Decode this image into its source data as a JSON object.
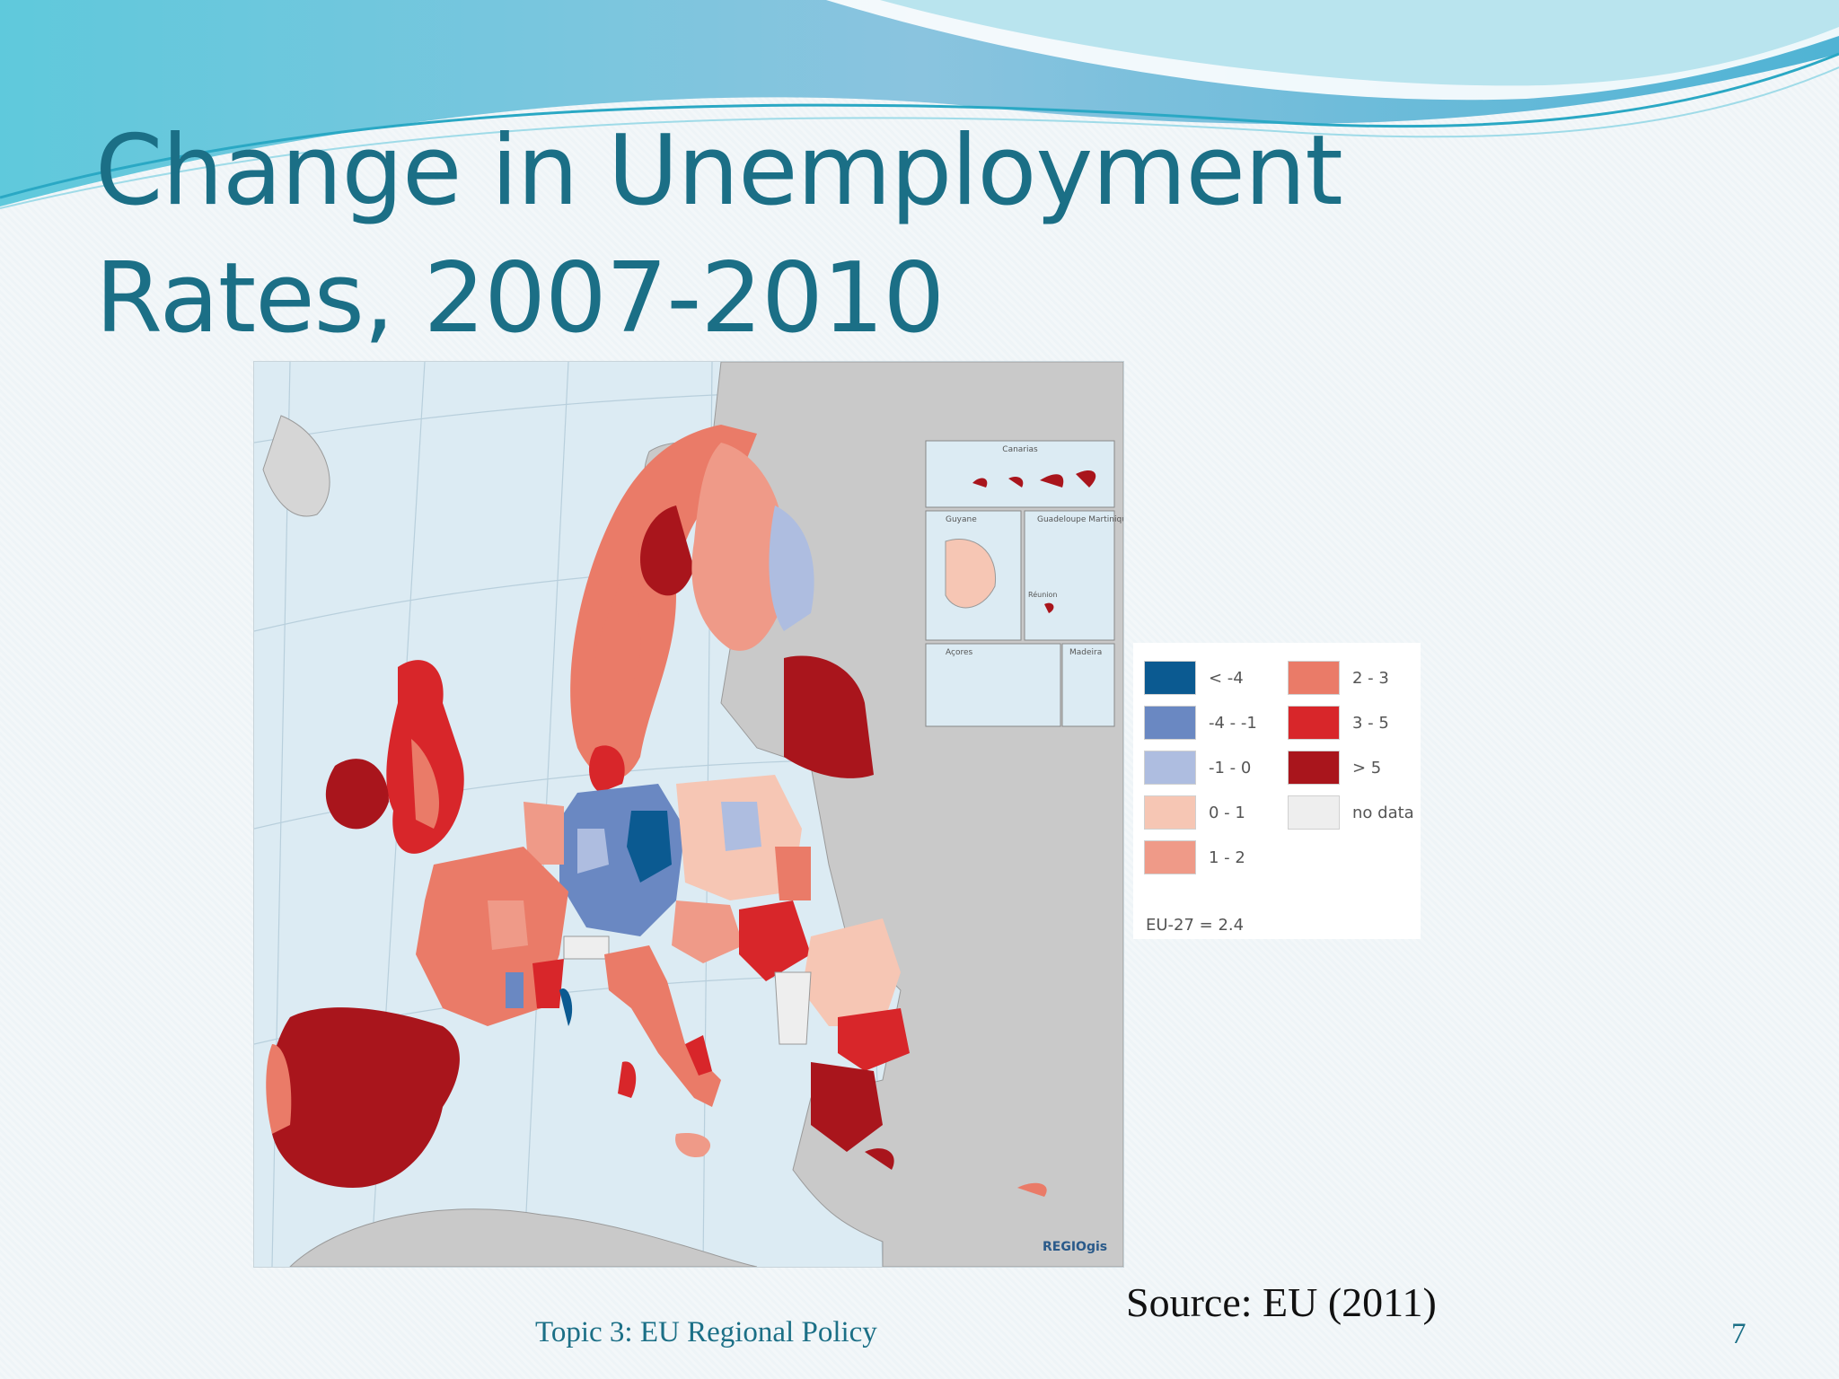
{
  "slide": {
    "title_line1": "Change in Unemployment",
    "title_line2": "Rates, 2007-2010",
    "source": "Source: EU (2011)",
    "footer": "Topic 3: EU Regional Policy",
    "page_number": "7"
  },
  "map": {
    "insets": [
      "Canarias",
      "Guyane",
      "Guadeloupe Martinique",
      "Réunion",
      "Açores",
      "Madeira"
    ],
    "logo_text": "REGIOgis"
  },
  "legend": {
    "items": [
      {
        "label": "< -4",
        "color": "#0b5a91"
      },
      {
        "label": "-4 - -1",
        "color": "#6a88c2"
      },
      {
        "label": "-1 - 0",
        "color": "#aebde0"
      },
      {
        "label": "0 - 1",
        "color": "#f6c6b4"
      },
      {
        "label": "1 - 2",
        "color": "#ef9a88"
      },
      {
        "label": "2 - 3",
        "color": "#ea7b68"
      },
      {
        "label": "3 - 5",
        "color": "#d8262a"
      },
      {
        "label": "> 5",
        "color": "#a9151c"
      },
      {
        "label": "no data",
        "color": "#eeeeee"
      }
    ],
    "eu_average": "EU-27 = 2.4"
  },
  "colors": {
    "title": "#1b6f86",
    "sea": "#dcebf3",
    "non_eu_land": "#c9c9c9"
  }
}
